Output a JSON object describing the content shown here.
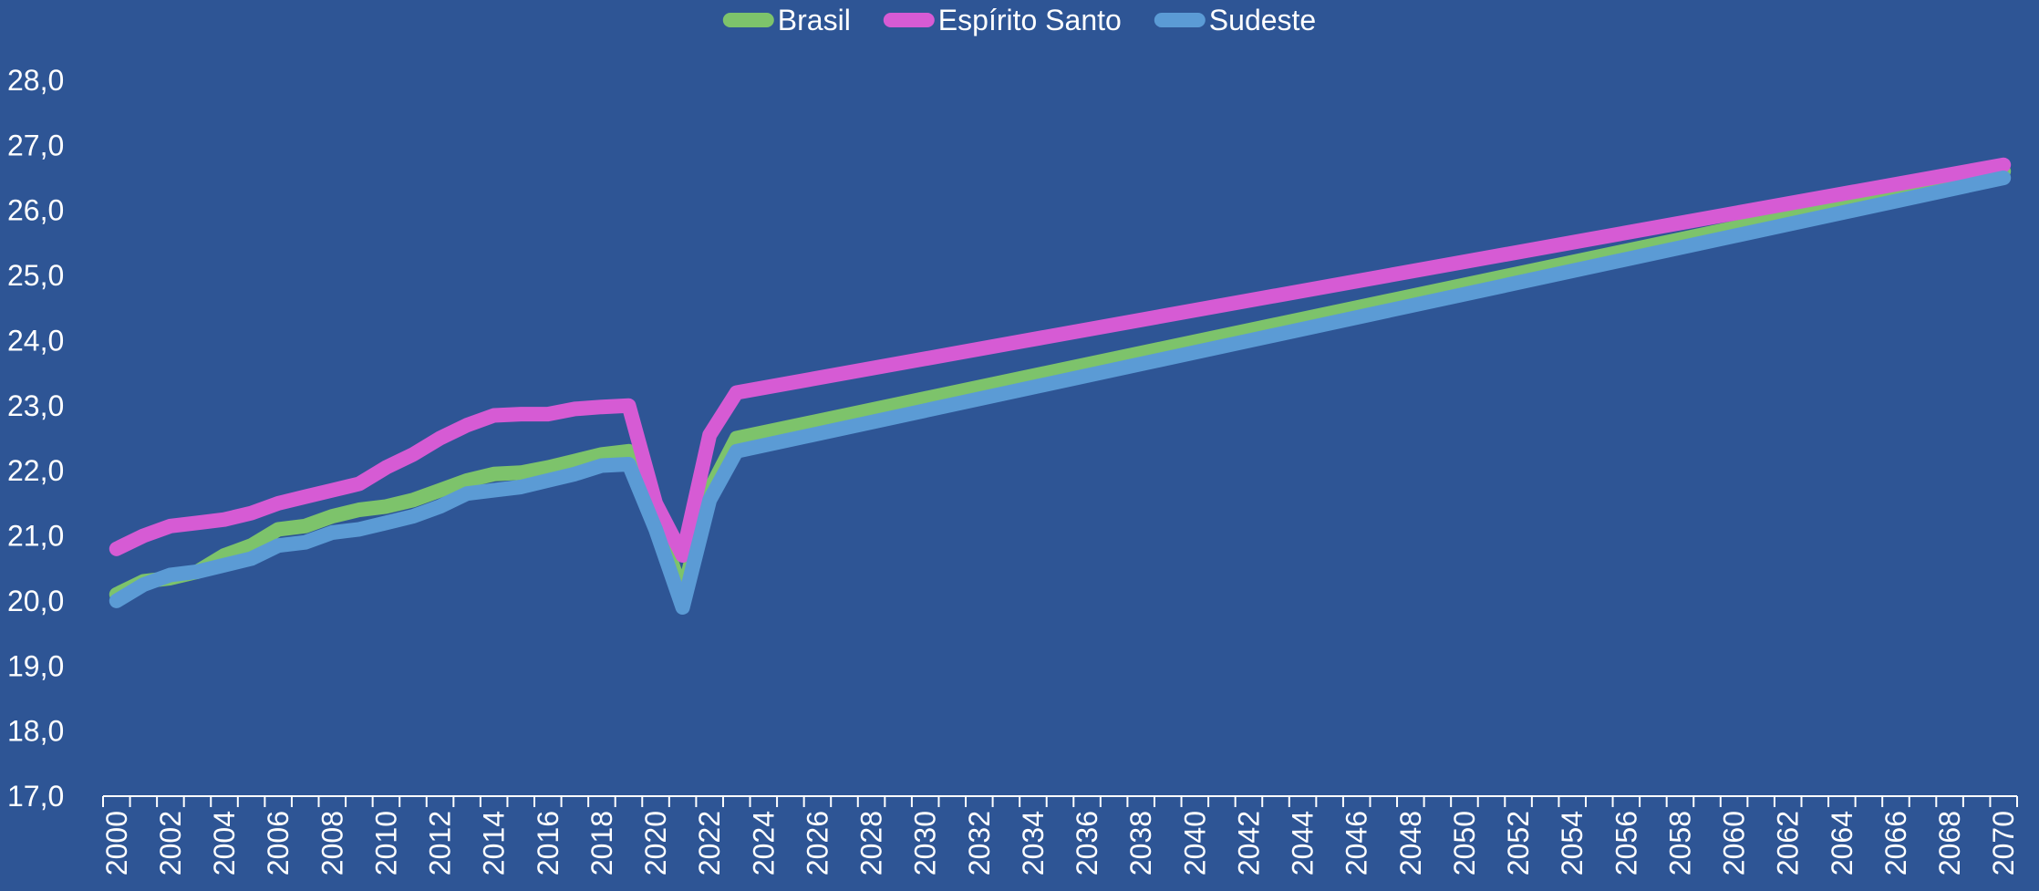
{
  "chart_data": {
    "type": "line",
    "title": "",
    "xlabel": "",
    "ylabel": "",
    "ylim": [
      17,
      28
    ],
    "yticks": [
      "17,0",
      "18,0",
      "19,0",
      "20,0",
      "21,0",
      "22,0",
      "23,0",
      "24,0",
      "25,0",
      "26,0",
      "27,0",
      "28,0"
    ],
    "xlim": [
      2000,
      2070
    ],
    "xticks": [
      "2000",
      "2002",
      "2004",
      "2006",
      "2008",
      "2010",
      "2012",
      "2014",
      "2016",
      "2018",
      "2020",
      "2022",
      "2024",
      "2026",
      "2028",
      "2030",
      "2032",
      "2034",
      "2036",
      "2038",
      "2040",
      "2042",
      "2044",
      "2046",
      "2048",
      "2050",
      "2052",
      "2054",
      "2056",
      "2058",
      "2060",
      "2062",
      "2064",
      "2066",
      "2068",
      "2070"
    ],
    "grid": false,
    "legend_position": "top-center",
    "series": [
      {
        "name": "Brasil",
        "color": "#7dc36b",
        "points": [
          [
            2000,
            20.1
          ],
          [
            2001,
            20.3
          ],
          [
            2002,
            20.35
          ],
          [
            2003,
            20.45
          ],
          [
            2004,
            20.7
          ],
          [
            2005,
            20.85
          ],
          [
            2006,
            21.1
          ],
          [
            2007,
            21.15
          ],
          [
            2008,
            21.3
          ],
          [
            2009,
            21.4
          ],
          [
            2010,
            21.45
          ],
          [
            2011,
            21.55
          ],
          [
            2012,
            21.7
          ],
          [
            2013,
            21.85
          ],
          [
            2014,
            21.95
          ],
          [
            2015,
            21.97
          ],
          [
            2016,
            22.05
          ],
          [
            2017,
            22.15
          ],
          [
            2018,
            22.25
          ],
          [
            2019,
            22.3
          ],
          [
            2020,
            21.3
          ],
          [
            2021,
            20.1
          ],
          [
            2022,
            21.7
          ],
          [
            2023,
            22.5
          ],
          [
            2070,
            26.6
          ]
        ]
      },
      {
        "name": "Espírito Santo",
        "color": "#d65bd4",
        "points": [
          [
            2000,
            20.8
          ],
          [
            2001,
            21.0
          ],
          [
            2002,
            21.15
          ],
          [
            2003,
            21.2
          ],
          [
            2004,
            21.25
          ],
          [
            2005,
            21.35
          ],
          [
            2006,
            21.5
          ],
          [
            2007,
            21.6
          ],
          [
            2008,
            21.7
          ],
          [
            2009,
            21.8
          ],
          [
            2010,
            22.05
          ],
          [
            2011,
            22.25
          ],
          [
            2012,
            22.5
          ],
          [
            2013,
            22.7
          ],
          [
            2014,
            22.85
          ],
          [
            2015,
            22.87
          ],
          [
            2016,
            22.87
          ],
          [
            2017,
            22.95
          ],
          [
            2018,
            22.98
          ],
          [
            2019,
            23.0
          ],
          [
            2020,
            21.5
          ],
          [
            2021,
            20.7
          ],
          [
            2022,
            22.55
          ],
          [
            2023,
            23.2
          ],
          [
            2070,
            26.7
          ]
        ]
      },
      {
        "name": "Sudeste",
        "color": "#5b9bd5",
        "points": [
          [
            2000,
            20.0
          ],
          [
            2001,
            20.25
          ],
          [
            2002,
            20.4
          ],
          [
            2003,
            20.45
          ],
          [
            2004,
            20.55
          ],
          [
            2005,
            20.65
          ],
          [
            2006,
            20.85
          ],
          [
            2007,
            20.9
          ],
          [
            2008,
            21.05
          ],
          [
            2009,
            21.1
          ],
          [
            2010,
            21.2
          ],
          [
            2011,
            21.3
          ],
          [
            2012,
            21.45
          ],
          [
            2013,
            21.65
          ],
          [
            2014,
            21.7
          ],
          [
            2015,
            21.75
          ],
          [
            2016,
            21.85
          ],
          [
            2017,
            21.95
          ],
          [
            2018,
            22.08
          ],
          [
            2019,
            22.1
          ],
          [
            2020,
            21.1
          ],
          [
            2021,
            19.9
          ],
          [
            2022,
            21.55
          ],
          [
            2023,
            22.3
          ],
          [
            2070,
            26.5
          ]
        ]
      }
    ]
  }
}
